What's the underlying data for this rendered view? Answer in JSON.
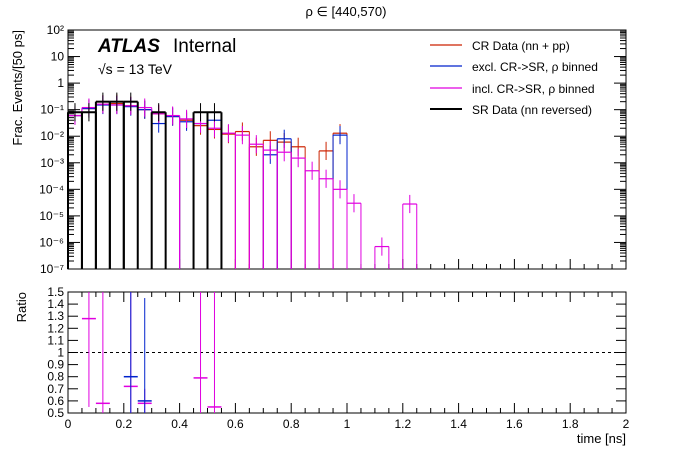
{
  "chart_data": [
    {
      "type": "histogram",
      "title": "ρ ∈ [440,570)",
      "ylabel": "Frac. Events/[50 ps]",
      "xlabel": "",
      "x_range": [
        0,
        2
      ],
      "y_range": [
        1e-07,
        100
      ],
      "log_y": true,
      "bin_width": 0.05,
      "y_tick_labels": [
        "10⁻⁷",
        "10⁻⁶",
        "10⁻⁵",
        "10⁻⁴",
        "10⁻³",
        "10⁻²",
        "10⁻¹",
        "1",
        "10",
        "10²"
      ],
      "annotation": {
        "experiment": "ATLAS",
        "status": "Internal",
        "energy": "√s = 13 TeV"
      },
      "legend_position": "top-right",
      "series": [
        {
          "name": "CR Data (nn + pp)",
          "color": "#cc2200",
          "values": [
            0.06,
            0.11,
            0.16,
            0.17,
            0.14,
            0.1,
            0.07,
            0.055,
            0.04,
            0.025,
            0.018,
            0.012,
            0.015,
            0.004,
            0.007,
            0.006,
            0.004,
            0,
            0.0028,
            0.013,
            0,
            0,
            0,
            0,
            0,
            0,
            0,
            0,
            0,
            0,
            0,
            0,
            0,
            0,
            0,
            0,
            0,
            0,
            0,
            0
          ]
        },
        {
          "name": "excl. CR->SR, ρ binned",
          "color": "#0022cc",
          "values": [
            0.06,
            0.11,
            0.15,
            0.15,
            0.13,
            0.1,
            0.03,
            0.055,
            0.035,
            0.03,
            0.04,
            0,
            0,
            0,
            0.002,
            0.008,
            0.0,
            0,
            0,
            0.011,
            0,
            0,
            0,
            0,
            0,
            0,
            0,
            0,
            0,
            0,
            0,
            0,
            0,
            0,
            0,
            0,
            0,
            0,
            0,
            0
          ]
        },
        {
          "name": "incl. CR->SR, ρ binned",
          "color": "#e000e0",
          "values": [
            0.06,
            0.12,
            0.16,
            0.15,
            0.14,
            0.12,
            0.07,
            0.06,
            0.045,
            0.03,
            0.02,
            0.013,
            0.011,
            0.005,
            0.003,
            0.0025,
            0.0015,
            0.0005,
            0.00025,
            0.0001,
            3e-05,
            0,
            7e-07,
            0,
            2.8e-05,
            0,
            0,
            0,
            0,
            0,
            0,
            0,
            0,
            0,
            0,
            0,
            0,
            0,
            0,
            0
          ]
        },
        {
          "name": "SR Data (nn reversed)",
          "color": "#000000",
          "values": [
            0.08,
            0.08,
            0.2,
            0.2,
            0.2,
            0,
            0.08,
            0,
            0,
            0.08,
            0.08,
            0,
            0,
            0,
            0,
            0,
            0,
            0,
            0,
            0,
            0,
            0,
            0,
            0,
            0,
            0,
            0,
            0,
            0,
            0,
            0,
            0,
            0,
            0,
            0,
            0,
            0,
            0,
            0,
            0
          ]
        }
      ]
    },
    {
      "type": "scatter",
      "ylabel": "Ratio",
      "xlabel": "time [ns]",
      "x_range": [
        0,
        2
      ],
      "y_range": [
        0.5,
        1.5
      ],
      "x_tick_labels": [
        "0",
        "0.2",
        "0.4",
        "0.6",
        "0.8",
        "1",
        "1.2",
        "1.4",
        "1.6",
        "1.8",
        "2"
      ],
      "y_tick_labels": [
        "0.5",
        "0.6",
        "0.7",
        "0.8",
        "0.9",
        "1",
        "1.1",
        "1.2",
        "1.3",
        "1.4",
        "1.5"
      ],
      "reference_line": 1,
      "series": [
        {
          "name": "incl. CR->SR, ρ binned",
          "color": "#e000e0",
          "points": [
            {
              "x": 0.075,
              "y": 1.28,
              "lo": 0.55,
              "hi": 1.5
            },
            {
              "x": 0.125,
              "y": 0.58,
              "lo": 0.5,
              "hi": 1.5
            },
            {
              "x": 0.225,
              "y": 0.72,
              "lo": 0.5,
              "hi": 1.5
            },
            {
              "x": 0.275,
              "y": 0.58,
              "lo": 0.5,
              "hi": 0.7
            },
            {
              "x": 0.475,
              "y": 0.79,
              "lo": 0.5,
              "hi": 1.5
            },
            {
              "x": 0.525,
              "y": 0.55,
              "lo": 0.5,
              "hi": 1.5
            }
          ]
        },
        {
          "name": "excl. CR->SR, ρ binned",
          "color": "#0022cc",
          "points": [
            {
              "x": 0.225,
              "y": 0.8,
              "lo": 0.5,
              "hi": 1.5
            },
            {
              "x": 0.275,
              "y": 0.6,
              "lo": 0.5,
              "hi": 1.45
            }
          ]
        }
      ]
    }
  ]
}
